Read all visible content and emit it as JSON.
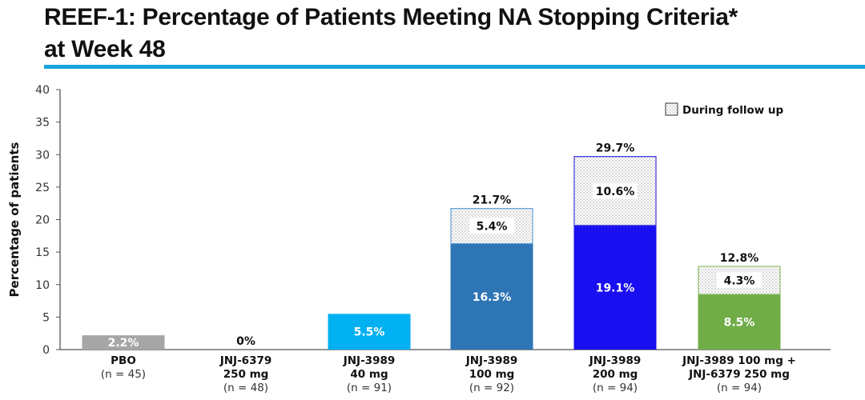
{
  "title_line1": "REEF-1: Percentage of Patients Meeting NA Stopping Criteria*",
  "title_line2": "at Week 48",
  "colors": {
    "title_rule": "#1aa3dc",
    "pbo": "#a6a6a6",
    "jnj3989_40": "#00b0f0",
    "jnj3989_100": "#2e75b6",
    "jnj3989_200": "#1a0ff0",
    "combo": "#70ad47",
    "axis": "#555555"
  },
  "chart_data": {
    "type": "bar",
    "stacked": true,
    "title": "REEF-1: Percentage of Patients Meeting NA Stopping Criteria* at Week 48",
    "xlabel": "",
    "ylabel": "Percentage of patients",
    "ylim": [
      0,
      40
    ],
    "yticks": [
      0,
      5,
      10,
      15,
      20,
      25,
      30,
      35,
      40
    ],
    "grid": false,
    "legend": {
      "position": "top-right",
      "entries": [
        "During follow up"
      ]
    },
    "categories": [
      {
        "name": "PBO",
        "dose": "",
        "n": "(n = 45)"
      },
      {
        "name": "JNJ-6379",
        "dose": "250 mg",
        "n": "(n = 48)"
      },
      {
        "name": "JNJ-3989",
        "dose": "40 mg",
        "n": "(n = 91)"
      },
      {
        "name": "JNJ-3989",
        "dose": "100 mg",
        "n": "(n = 92)"
      },
      {
        "name": "JNJ-3989",
        "dose": "200 mg",
        "n": "(n = 94)"
      },
      {
        "name": "JNJ-3989 100 mg +",
        "dose": "JNJ-6379 250 mg",
        "n": "(n = 94)"
      }
    ],
    "series": [
      {
        "name": "At Week 48",
        "values": [
          2.2,
          0,
          5.5,
          16.3,
          19.1,
          8.5
        ],
        "labels": [
          "2.2%",
          "",
          "5.5%",
          "16.3%",
          "19.1%",
          "8.5%"
        ]
      },
      {
        "name": "During follow up",
        "values": [
          0,
          0,
          0,
          5.4,
          10.6,
          4.3
        ],
        "labels": [
          "",
          "",
          "",
          "5.4%",
          "10.6%",
          "4.3%"
        ]
      }
    ],
    "totals": [
      2.2,
      0,
      5.5,
      21.7,
      29.7,
      12.8
    ],
    "total_labels": [
      "",
      "0%",
      "",
      "21.7%",
      "29.7%",
      "12.8%"
    ]
  }
}
